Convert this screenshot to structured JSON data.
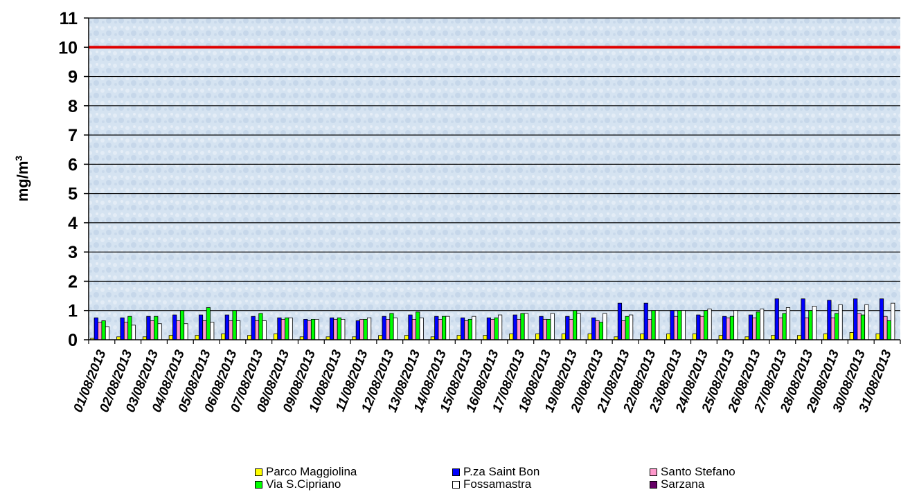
{
  "chart_data": {
    "type": "bar",
    "title": "",
    "xlabel": "",
    "ylabel": "mg/m",
    "ylabel_superscript": "3",
    "ylim": [
      0,
      11
    ],
    "yticks": [
      0,
      1,
      2,
      3,
      4,
      5,
      6,
      7,
      8,
      9,
      10,
      11
    ],
    "grid": true,
    "legend_position": "bottom",
    "limit_line": {
      "value": 10,
      "color": "#e00000"
    },
    "categories": [
      "01/08/2013",
      "02/08/2013",
      "03/08/2013",
      "04/08/2013",
      "05/08/2013",
      "06/08/2013",
      "07/08/2013",
      "08/08/2013",
      "09/08/2013",
      "10/08/2013",
      "11/08/2013",
      "12/08/2013",
      "13/08/2013",
      "14/08/2013",
      "15/08/2013",
      "16/08/2013",
      "17/08/2013",
      "18/08/2013",
      "19/08/2013",
      "20/08/2013",
      "21/08/2013",
      "22/08/2013",
      "23/08/2013",
      "24/08/2013",
      "25/08/2013",
      "26/08/2013",
      "27/08/2013",
      "28/08/2013",
      "29/08/2013",
      "30/08/2013",
      "31/08/2013"
    ],
    "series": [
      {
        "name": "Parco Maggiolina",
        "color": "#ffff00",
        "values": [
          0.05,
          0.1,
          0.1,
          0.15,
          0.15,
          0.2,
          0.15,
          0.2,
          0.1,
          0.1,
          0.1,
          0.15,
          0.15,
          0.1,
          0.15,
          0.15,
          0.2,
          0.2,
          0.2,
          0.2,
          0.1,
          0.2,
          0.2,
          0.2,
          0.15,
          0.1,
          0.15,
          0.15,
          0.2,
          0.25,
          0.2
        ]
      },
      {
        "name": "P.za Saint Bon",
        "color": "#0000ff",
        "values": [
          0.75,
          0.75,
          0.8,
          0.85,
          0.85,
          0.85,
          0.8,
          0.75,
          0.7,
          0.75,
          0.65,
          0.8,
          0.85,
          0.8,
          0.75,
          0.75,
          0.85,
          0.8,
          0.8,
          0.75,
          1.25,
          1.25,
          1.0,
          0.85,
          0.8,
          0.85,
          1.4,
          1.4,
          1.35,
          1.4,
          1.4
        ]
      },
      {
        "name": "Santo Stefano",
        "color": "#ff99cc",
        "values": [
          0.6,
          0.6,
          0.65,
          0.65,
          0.65,
          0.65,
          0.65,
          0.7,
          0.65,
          0.7,
          0.7,
          0.7,
          0.7,
          0.7,
          0.65,
          0.7,
          0.7,
          0.7,
          0.7,
          0.65,
          0.65,
          0.7,
          0.8,
          0.8,
          0.75,
          0.75,
          0.75,
          0.75,
          0.75,
          0.9,
          0.8
        ]
      },
      {
        "name": "Via S.Cipriano",
        "color": "#00ff00",
        "values": [
          0.65,
          0.8,
          0.8,
          1.0,
          1.1,
          1.0,
          0.9,
          0.75,
          0.7,
          0.75,
          0.7,
          0.9,
          0.95,
          0.8,
          0.7,
          0.75,
          0.9,
          0.7,
          1.0,
          0.6,
          0.8,
          1.0,
          1.0,
          1.0,
          0.8,
          0.95,
          0.9,
          1.0,
          0.9,
          0.85,
          0.65
        ]
      },
      {
        "name": "Fossamastra",
        "color": "#ffffff",
        "values": [
          0.45,
          0.5,
          0.55,
          0.55,
          0.6,
          0.65,
          0.65,
          0.75,
          0.7,
          0.7,
          0.75,
          0.75,
          0.75,
          0.8,
          0.8,
          0.85,
          0.9,
          0.9,
          0.9,
          0.9,
          0.85,
          1.0,
          1.0,
          1.05,
          1.0,
          1.05,
          1.1,
          1.15,
          1.2,
          1.2,
          1.25
        ]
      },
      {
        "name": "Sarzana",
        "color": "#660066",
        "values": [
          0,
          0,
          0,
          0,
          0,
          0,
          0,
          0,
          0,
          0,
          0,
          0,
          0,
          0,
          0,
          0,
          0,
          0,
          0,
          0,
          0,
          0,
          0,
          0,
          0,
          0,
          0,
          0,
          0,
          0,
          0
        ]
      }
    ]
  }
}
